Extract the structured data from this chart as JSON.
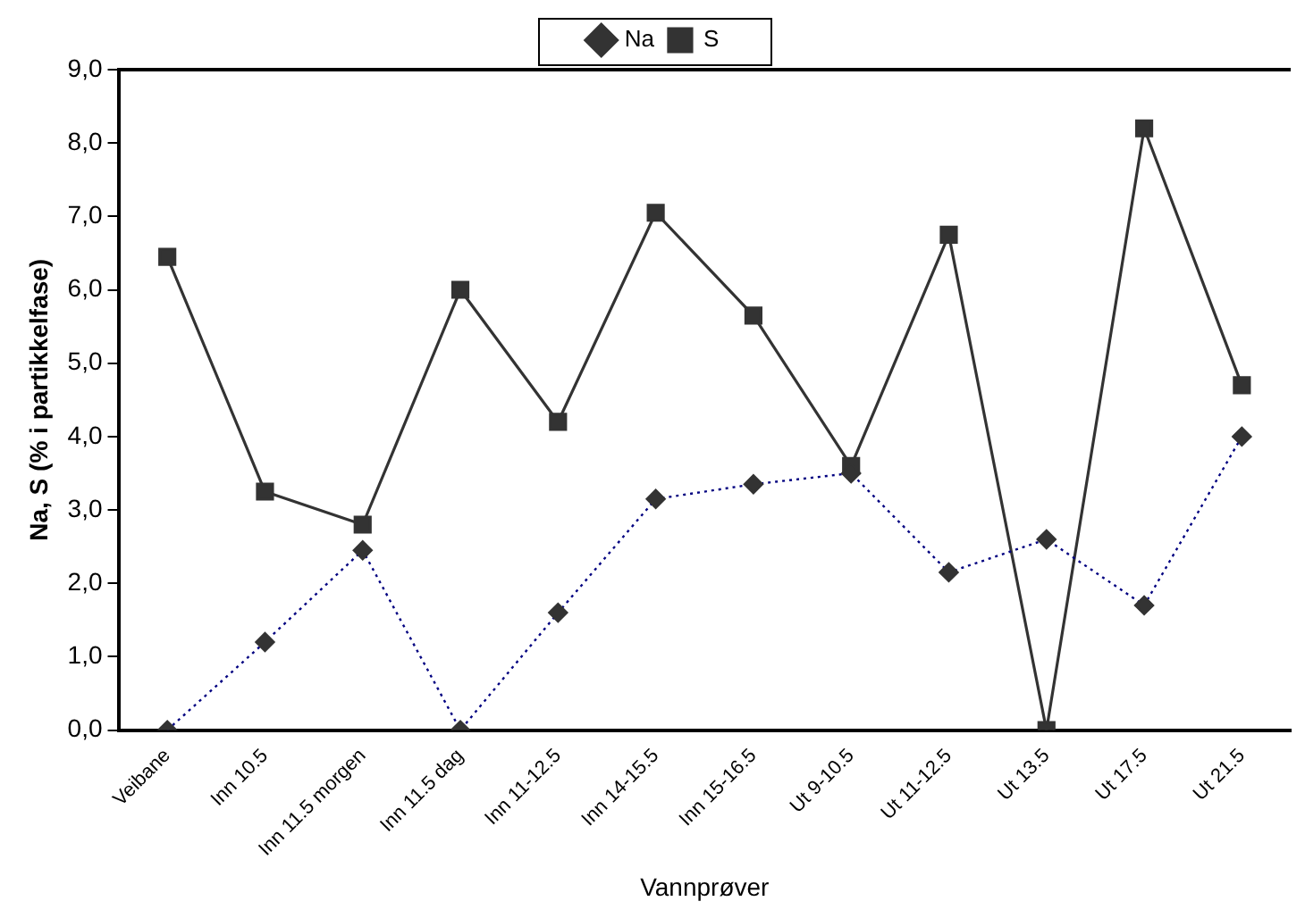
{
  "chart_data": {
    "type": "line",
    "xlabel": "Vannprøver",
    "ylabel": "Na, S (% i partikkelfase)",
    "categories": [
      "Veibane",
      "Inn 10.5",
      "Inn 11.5 morgen",
      "Inn 11.5 dag",
      "Inn 11-12.5",
      "Inn 14-15.5",
      "Inn 15-16.5",
      "Ut 9-10.5",
      "Ut 11-12.5",
      "Ut 13.5",
      "Ut 17.5",
      "Ut 21.5"
    ],
    "series": [
      {
        "name": "Na",
        "color": "#000080",
        "marker": "diamond",
        "line_style": "dotted",
        "values": [
          0,
          1.2,
          2.45,
          0,
          1.6,
          3.15,
          3.35,
          3.5,
          2.15,
          2.6,
          1.7,
          4.0
        ]
      },
      {
        "name": "S",
        "color": "#333333",
        "marker": "square",
        "line_style": "solid",
        "values": [
          6.45,
          3.25,
          2.8,
          6.0,
          4.2,
          7.05,
          5.65,
          3.6,
          6.75,
          0,
          8.2,
          4.7
        ]
      }
    ],
    "ylim": [
      0,
      9
    ],
    "yticks": [
      {
        "value": 0,
        "label": "0,0"
      },
      {
        "value": 1,
        "label": "1,0"
      },
      {
        "value": 2,
        "label": "2,0"
      },
      {
        "value": 3,
        "label": "3,0"
      },
      {
        "value": 4,
        "label": "4,0"
      },
      {
        "value": 5,
        "label": "5,0"
      },
      {
        "value": 6,
        "label": "6,0"
      },
      {
        "value": 7,
        "label": "7,0"
      },
      {
        "value": 8,
        "label": "8,0"
      },
      {
        "value": 9,
        "label": "9,0"
      }
    ],
    "grid": false,
    "legend": "top"
  }
}
